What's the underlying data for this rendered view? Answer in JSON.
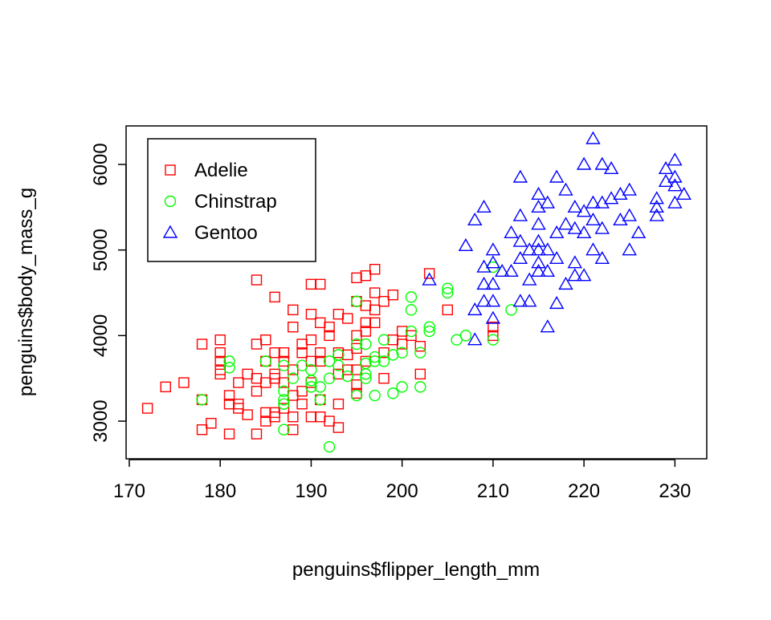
{
  "chart_data": {
    "type": "scatter",
    "title": "",
    "xlabel": "penguins$flipper_length_mm",
    "ylabel": "penguins$body_mass_g",
    "xlim": [
      169.65,
      233.5
    ],
    "ylim": [
      2560,
      6450
    ],
    "xticks": [
      170,
      180,
      190,
      200,
      210,
      220,
      230
    ],
    "yticks": [
      3000,
      4000,
      5000,
      6000
    ],
    "grid": false,
    "legend": {
      "placement": "top-left",
      "entries": [
        "Adelie",
        "Chinstrap",
        "Gentoo"
      ]
    },
    "series": [
      {
        "name": "Adelie",
        "color": "#ff0000",
        "marker": "square",
        "points": [
          [
            172,
            3150
          ],
          [
            174,
            3400
          ],
          [
            176,
            3450
          ],
          [
            178,
            3900
          ],
          [
            178,
            2900
          ],
          [
            178,
            3250
          ],
          [
            179,
            2975
          ],
          [
            180,
            3950
          ],
          [
            180,
            3800
          ],
          [
            180,
            3700
          ],
          [
            180,
            3600
          ],
          [
            180,
            3550
          ],
          [
            181,
            3300
          ],
          [
            181,
            3200
          ],
          [
            181,
            2850
          ],
          [
            182,
            3150
          ],
          [
            182,
            3200
          ],
          [
            182,
            3450
          ],
          [
            183,
            3075
          ],
          [
            183,
            3550
          ],
          [
            184,
            4650
          ],
          [
            184,
            3900
          ],
          [
            184,
            3500
          ],
          [
            184,
            3350
          ],
          [
            184,
            2850
          ],
          [
            185,
            3950
          ],
          [
            185,
            3700
          ],
          [
            185,
            3450
          ],
          [
            185,
            3100
          ],
          [
            185,
            3000
          ],
          [
            186,
            4450
          ],
          [
            186,
            3800
          ],
          [
            186,
            3550
          ],
          [
            186,
            3500
          ],
          [
            186,
            3100
          ],
          [
            186,
            3050
          ],
          [
            187,
            3800
          ],
          [
            187,
            3700
          ],
          [
            187,
            3450
          ],
          [
            187,
            3150
          ],
          [
            188,
            4300
          ],
          [
            188,
            4100
          ],
          [
            188,
            3600
          ],
          [
            188,
            3300
          ],
          [
            188,
            3050
          ],
          [
            188,
            2900
          ],
          [
            189,
            3900
          ],
          [
            189,
            3800
          ],
          [
            189,
            3350
          ],
          [
            189,
            3200
          ],
          [
            190,
            4600
          ],
          [
            190,
            4250
          ],
          [
            190,
            3950
          ],
          [
            190,
            3700
          ],
          [
            190,
            3450
          ],
          [
            190,
            3050
          ],
          [
            191,
            4600
          ],
          [
            191,
            4150
          ],
          [
            191,
            3800
          ],
          [
            191,
            3700
          ],
          [
            191,
            3250
          ],
          [
            191,
            3050
          ],
          [
            192,
            4100
          ],
          [
            192,
            4000
          ],
          [
            192,
            3000
          ],
          [
            193,
            4250
          ],
          [
            193,
            3800
          ],
          [
            193,
            3550
          ],
          [
            193,
            3200
          ],
          [
            193,
            2925
          ],
          [
            194,
            4200
          ],
          [
            194,
            3775
          ],
          [
            194,
            3600
          ],
          [
            195,
            4675
          ],
          [
            195,
            4400
          ],
          [
            195,
            4000
          ],
          [
            195,
            3850
          ],
          [
            195,
            3600
          ],
          [
            195,
            3425
          ],
          [
            195,
            3325
          ],
          [
            196,
            4700
          ],
          [
            196,
            4350
          ],
          [
            196,
            4150
          ],
          [
            196,
            4050
          ],
          [
            196,
            3700
          ],
          [
            197,
            4775
          ],
          [
            197,
            4500
          ],
          [
            197,
            4300
          ],
          [
            197,
            4150
          ],
          [
            198,
            4400
          ],
          [
            198,
            3800
          ],
          [
            198,
            3500
          ],
          [
            199,
            4475
          ],
          [
            199,
            3950
          ],
          [
            200,
            4050
          ],
          [
            200,
            3900
          ],
          [
            201,
            4000
          ],
          [
            202,
            3875
          ],
          [
            202,
            3550
          ],
          [
            203,
            4725
          ],
          [
            205,
            4300
          ],
          [
            210,
            4000
          ],
          [
            210,
            4100
          ]
        ]
      },
      {
        "name": "Chinstrap",
        "color": "#00ff00",
        "marker": "circle",
        "points": [
          [
            178,
            3250
          ],
          [
            181,
            3700
          ],
          [
            181,
            3625
          ],
          [
            185,
            3700
          ],
          [
            187,
            3350
          ],
          [
            187,
            3250
          ],
          [
            187,
            3200
          ],
          [
            187,
            2900
          ],
          [
            187,
            3650
          ],
          [
            188,
            3500
          ],
          [
            189,
            3650
          ],
          [
            190,
            3600
          ],
          [
            190,
            3400
          ],
          [
            190,
            3475
          ],
          [
            191,
            3400
          ],
          [
            191,
            3250
          ],
          [
            192,
            2700
          ],
          [
            192,
            3500
          ],
          [
            192,
            3700
          ],
          [
            193,
            3775
          ],
          [
            193,
            3650
          ],
          [
            194,
            3525
          ],
          [
            195,
            4400
          ],
          [
            195,
            3900
          ],
          [
            195,
            3300
          ],
          [
            196,
            3500
          ],
          [
            196,
            3550
          ],
          [
            196,
            3900
          ],
          [
            196,
            3675
          ],
          [
            197,
            3700
          ],
          [
            197,
            3300
          ],
          [
            197,
            3750
          ],
          [
            198,
            3700
          ],
          [
            198,
            3950
          ],
          [
            199,
            3325
          ],
          [
            199,
            3775
          ],
          [
            200,
            3400
          ],
          [
            200,
            3800
          ],
          [
            201,
            4300
          ],
          [
            201,
            4450
          ],
          [
            201,
            4050
          ],
          [
            202,
            3800
          ],
          [
            202,
            3400
          ],
          [
            203,
            4050
          ],
          [
            203,
            4100
          ],
          [
            205,
            4550
          ],
          [
            205,
            4500
          ],
          [
            206,
            3950
          ],
          [
            207,
            4000
          ],
          [
            210,
            4800
          ],
          [
            210,
            3950
          ],
          [
            212,
            4300
          ]
        ]
      },
      {
        "name": "Gentoo",
        "color": "#0000ff",
        "marker": "triangle",
        "points": [
          [
            203,
            4650
          ],
          [
            207,
            5050
          ],
          [
            208,
            5350
          ],
          [
            208,
            4300
          ],
          [
            208,
            3950
          ],
          [
            209,
            5500
          ],
          [
            209,
            4600
          ],
          [
            209,
            4800
          ],
          [
            209,
            4400
          ],
          [
            210,
            5000
          ],
          [
            210,
            4600
          ],
          [
            210,
            4400
          ],
          [
            210,
            4200
          ],
          [
            210,
            4850
          ],
          [
            211,
            4750
          ],
          [
            212,
            5200
          ],
          [
            212,
            4750
          ],
          [
            213,
            5850
          ],
          [
            213,
            5400
          ],
          [
            213,
            5100
          ],
          [
            213,
            4900
          ],
          [
            213,
            4400
          ],
          [
            214,
            5000
          ],
          [
            214,
            4650
          ],
          [
            214,
            4400
          ],
          [
            215,
            5650
          ],
          [
            215,
            5500
          ],
          [
            215,
            5300
          ],
          [
            215,
            5100
          ],
          [
            215,
            5000
          ],
          [
            215,
            4850
          ],
          [
            215,
            4750
          ],
          [
            216,
            5550
          ],
          [
            216,
            5000
          ],
          [
            216,
            4750
          ],
          [
            216,
            4100
          ],
          [
            217,
            5850
          ],
          [
            217,
            5200
          ],
          [
            217,
            4900
          ],
          [
            217,
            4375
          ],
          [
            218,
            5700
          ],
          [
            218,
            5300
          ],
          [
            218,
            4600
          ],
          [
            219,
            5500
          ],
          [
            219,
            5250
          ],
          [
            219,
            4850
          ],
          [
            219,
            4700
          ],
          [
            220,
            6000
          ],
          [
            220,
            5450
          ],
          [
            220,
            5200
          ],
          [
            220,
            4700
          ],
          [
            221,
            6300
          ],
          [
            221,
            5550
          ],
          [
            221,
            5350
          ],
          [
            221,
            5000
          ],
          [
            222,
            6000
          ],
          [
            222,
            5550
          ],
          [
            222,
            5250
          ],
          [
            222,
            4900
          ],
          [
            223,
            5950
          ],
          [
            223,
            5600
          ],
          [
            224,
            5650
          ],
          [
            224,
            5350
          ],
          [
            225,
            5700
          ],
          [
            225,
            5400
          ],
          [
            225,
            5000
          ],
          [
            226,
            5200
          ],
          [
            228,
            5600
          ],
          [
            228,
            5500
          ],
          [
            228,
            5400
          ],
          [
            229,
            5950
          ],
          [
            229,
            5800
          ],
          [
            230,
            6050
          ],
          [
            230,
            5850
          ],
          [
            230,
            5750
          ],
          [
            230,
            5550
          ],
          [
            231,
            5650
          ]
        ]
      }
    ]
  }
}
